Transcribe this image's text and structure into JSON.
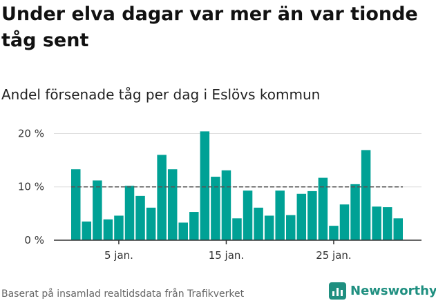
{
  "title": "Under elva dagar var mer än var tionde tåg sent",
  "subtitle": "Andel försenade tåg per dag i Eslövs kommun",
  "source": "Baserat på insamlad realtidsdata från Trafikverket",
  "brand": {
    "name": "Newsworthy",
    "logo_icon": "bar-chart-logo-icon"
  },
  "colors": {
    "bar": "#00a195",
    "reference_line": "#555555",
    "grid": "#dddddd",
    "axis": "#333333"
  },
  "chart_data": {
    "type": "bar",
    "x": [
      1,
      2,
      3,
      4,
      5,
      6,
      7,
      8,
      9,
      10,
      11,
      12,
      13,
      14,
      15,
      16,
      17,
      18,
      19,
      20,
      21,
      22,
      23,
      24,
      25,
      26,
      27,
      28,
      29,
      30,
      31
    ],
    "values": [
      13.3,
      3.5,
      11.2,
      3.9,
      4.6,
      10.2,
      8.3,
      6.1,
      16.0,
      13.3,
      3.3,
      5.3,
      20.4,
      11.9,
      13.1,
      4.1,
      9.3,
      6.1,
      4.6,
      9.3,
      4.7,
      8.7,
      9.2,
      11.7,
      2.7,
      6.7,
      10.5,
      16.9,
      6.3,
      6.2,
      4.1
    ],
    "ylim": [
      0,
      22
    ],
    "yticks": [
      0,
      10,
      20
    ],
    "ytick_labels": [
      "0 %",
      "10 %",
      "20 %"
    ],
    "xticks": [
      5,
      15,
      25
    ],
    "xtick_labels": [
      "5 jan.",
      "15 jan.",
      "25 jan."
    ],
    "reference_line": 10,
    "grid": true
  }
}
